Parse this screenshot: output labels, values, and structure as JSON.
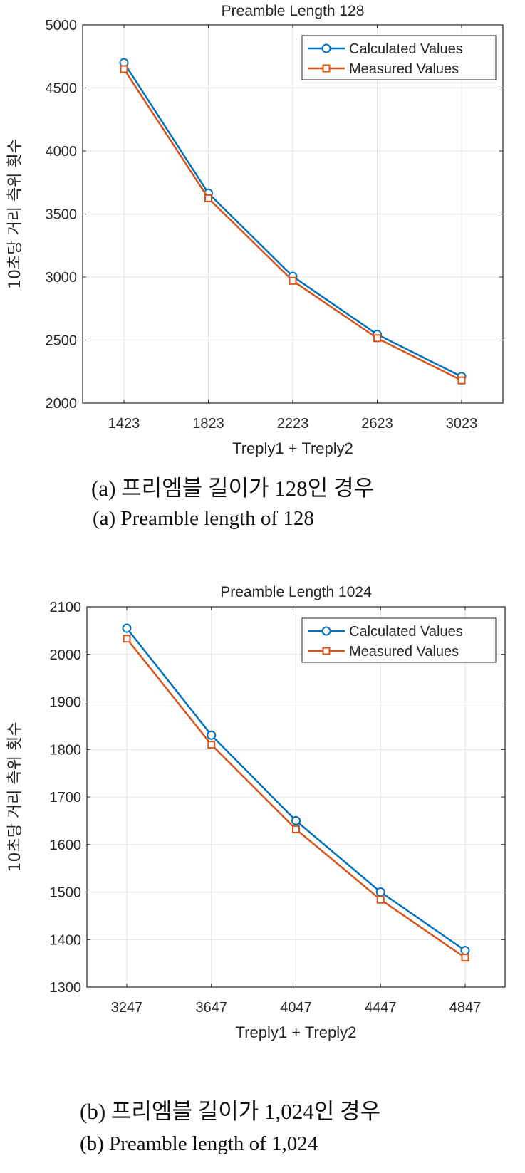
{
  "chart_data": [
    {
      "type": "line",
      "title": "Preamble Length 128",
      "xlabel": "Treply1 + Treply2",
      "ylabel": "10초당 거리 측위 횟수",
      "categories": [
        "1423",
        "1823",
        "2223",
        "2623",
        "3023"
      ],
      "ylim": [
        2000,
        5000
      ],
      "yticks": [
        "2000",
        "2500",
        "3000",
        "3500",
        "4000",
        "4500",
        "5000"
      ],
      "grid": true,
      "legend_position": "top-right",
      "series": [
        {
          "name": "Calculated Values",
          "marker": "circle",
          "color": "#0072BD",
          "values": [
            4700,
            3665,
            3005,
            2545,
            2210
          ]
        },
        {
          "name": "Measured Values",
          "marker": "square",
          "color": "#D95319",
          "values": [
            4650,
            3625,
            2970,
            2515,
            2180
          ]
        }
      ],
      "caption_ko": "(a)  프리엠블 길이가 128인 경우",
      "caption_en": "(a)  Preamble length of 128"
    },
    {
      "type": "line",
      "title": "Preamble Length 1024",
      "xlabel": "Treply1 + Treply2",
      "ylabel": "10초당 거리 측위 횟수",
      "categories": [
        "3247",
        "3647",
        "4047",
        "4447",
        "4847"
      ],
      "ylim": [
        1300,
        2100
      ],
      "yticks": [
        "1300",
        "1400",
        "1500",
        "1600",
        "1700",
        "1800",
        "1900",
        "2000",
        "2100"
      ],
      "grid": true,
      "legend_position": "top-right",
      "series": [
        {
          "name": "Calculated Values",
          "marker": "circle",
          "color": "#0072BD",
          "values": [
            2055,
            1830,
            1650,
            1500,
            1377
          ]
        },
        {
          "name": "Measured Values",
          "marker": "square",
          "color": "#D95319",
          "values": [
            2033,
            1810,
            1632,
            1484,
            1362
          ]
        }
      ],
      "caption_ko": "(b)  프리엠블 길이가 1,024인 경우",
      "caption_en": "(b)  Preamble length of 1,024"
    }
  ]
}
